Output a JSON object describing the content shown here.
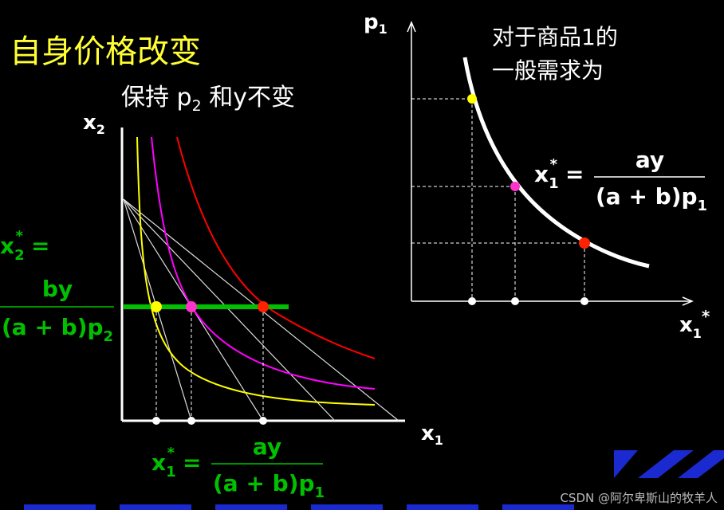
{
  "title": "自身价格改变",
  "subtitle": {
    "before": "保持 p",
    "sub": "2",
    "after": " 和y不变"
  },
  "left_graph": {
    "y_axis_label": {
      "base": "x",
      "sub": "2"
    },
    "x_axis_label": {
      "base": "x",
      "sub": "1"
    },
    "x2_formula": {
      "lhs_base": "x",
      "lhs_sub": "2",
      "lhs_sup": "*",
      "equals": "=",
      "numerator": "by",
      "denominator_base": "(a + b)p",
      "denominator_sub": "2"
    },
    "x1_formula": {
      "lhs_base": "x",
      "lhs_sub": "1",
      "lhs_sup": "*",
      "equals": "=",
      "numerator": "ay",
      "denominator_base": "(a + b)p",
      "denominator_sub": "1"
    }
  },
  "right_graph": {
    "y_axis_label": {
      "base": "p",
      "sub": "1"
    },
    "x_axis_label": {
      "base": "x",
      "sub": "1",
      "sup": "*"
    },
    "note": [
      "对于商品1的",
      "一般需求为"
    ],
    "formula": {
      "lhs_base": "x",
      "lhs_sub": "1",
      "lhs_sup": "*",
      "equals": "=",
      "numerator": "ay",
      "denominator_base": "(a + b)p",
      "denominator_sub": "1"
    }
  },
  "watermark": "CSDN @阿尔卑斯山的牧羊人"
}
